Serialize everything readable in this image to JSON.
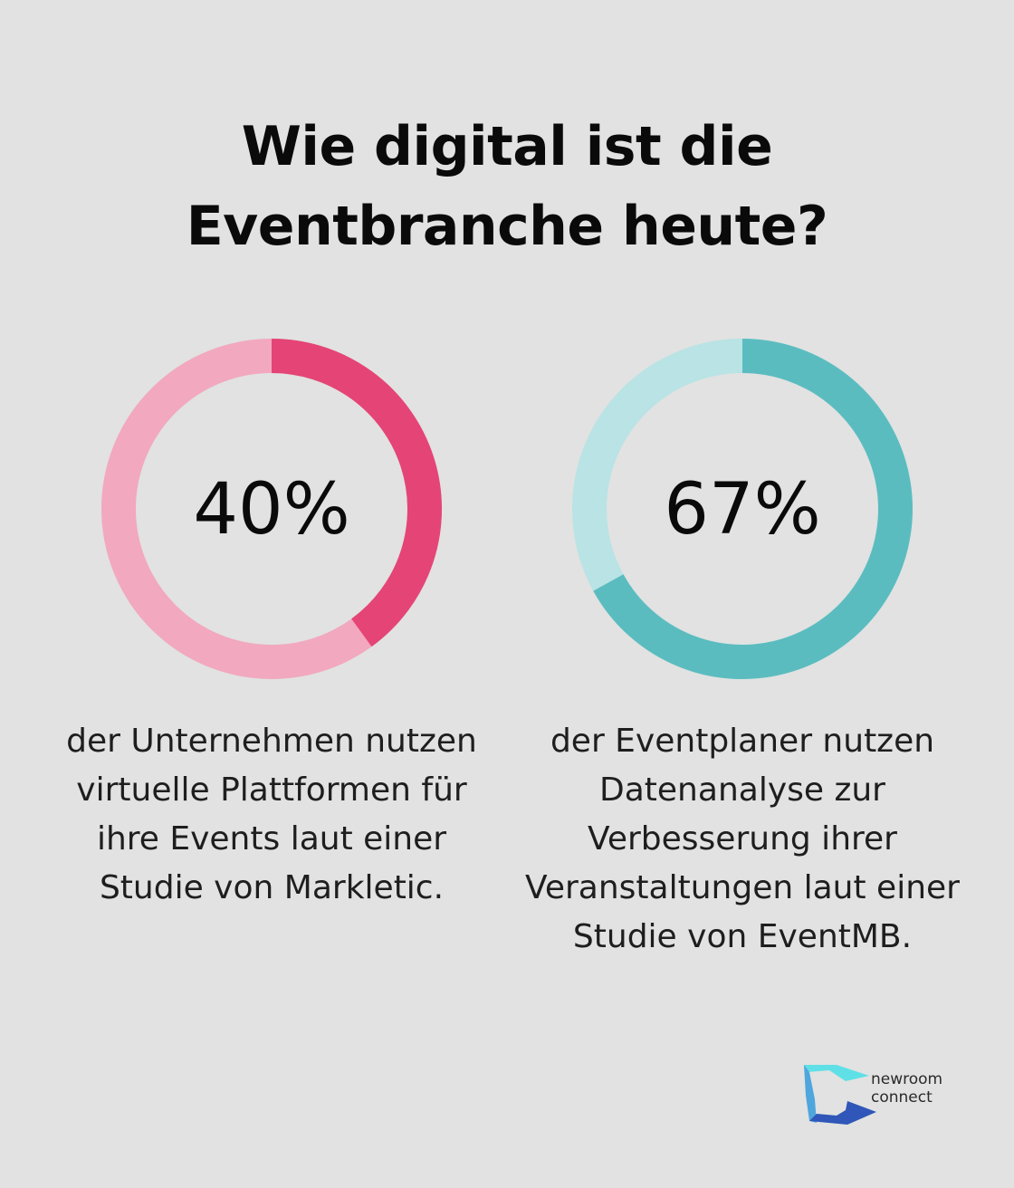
{
  "title": {
    "line1": "Wie digital ist die",
    "line2": "Eventbranche heute?"
  },
  "chart_data": [
    {
      "type": "pie",
      "value": 40,
      "label": "40%",
      "colors": {
        "filled": "#e44576",
        "track": "#f2a8bf"
      },
      "caption": [
        "der Unternehmen nutzen",
        "virtuelle Plattformen für",
        "ihre Events laut einer",
        "Studie von Markletic."
      ]
    },
    {
      "type": "pie",
      "value": 67,
      "label": "67%",
      "colors": {
        "filled": "#5bbcc0",
        "track": "#b9e3e5"
      },
      "caption": [
        "der Eventplaner nutzen",
        "Datenanalyse zur",
        "Verbesserung ihrer",
        "Veranstaltungen laut einer",
        "Studie von EventMB."
      ]
    }
  ],
  "logo": {
    "line1": "newroom",
    "line2": "connect",
    "colors": [
      "#5ee0e6",
      "#4fa6dc",
      "#2f56b8"
    ]
  }
}
